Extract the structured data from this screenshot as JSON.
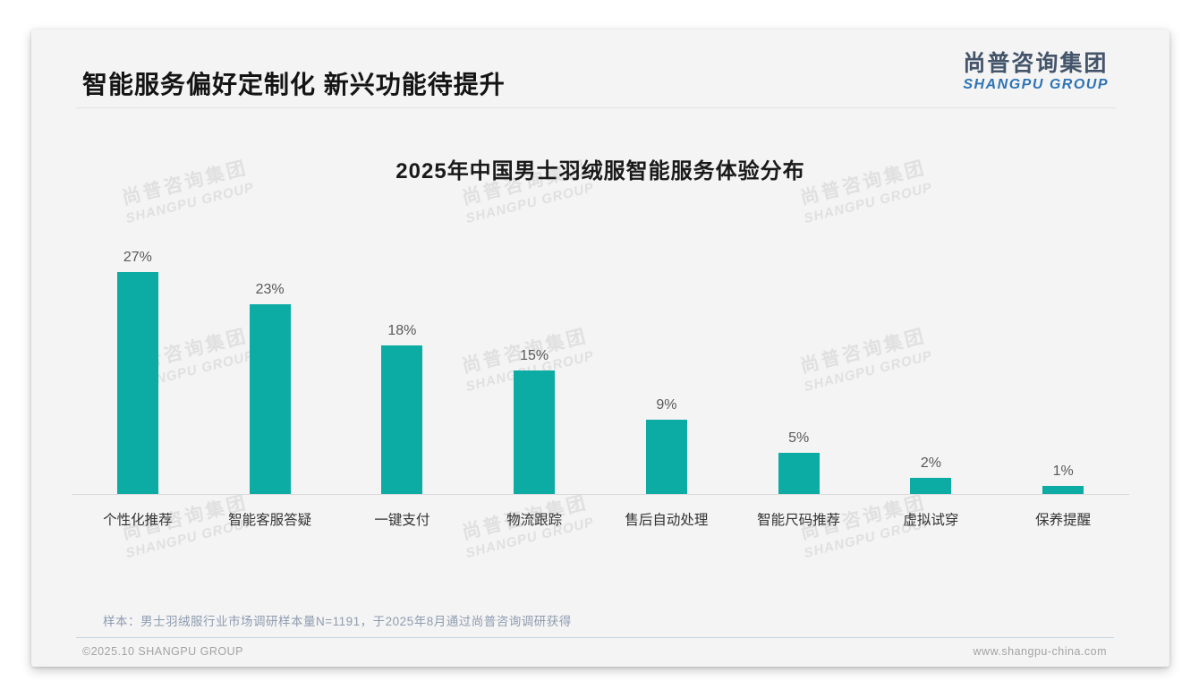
{
  "header": {
    "title": "智能服务偏好定制化 新兴功能待提升"
  },
  "logo": {
    "chinese": "尚普咨询集团",
    "english": "SHANGPU GROUP"
  },
  "watermark": {
    "line1": "尚普咨询集团",
    "line2": "SHANGPU GROUP"
  },
  "chart_data": {
    "type": "bar",
    "title": "2025年中国男士羽绒服智能服务体验分布",
    "categories": [
      "个性化推荐",
      "智能客服答疑",
      "一键支付",
      "物流跟踪",
      "售后自动处理",
      "智能尺码推荐",
      "虚拟试穿",
      "保养提醒"
    ],
    "values": [
      27,
      23,
      18,
      15,
      9,
      5,
      2,
      1
    ],
    "unit": "%",
    "bar_color": "#0caca5",
    "value_label_color": "#595959",
    "ylim": [
      0,
      30
    ],
    "grid": false,
    "legend": false,
    "xlabel": "",
    "ylabel": ""
  },
  "note": {
    "text": "样本：男士羽绒服行业市场调研样本量N=1191，于2025年8月通过尚普咨询调研获得"
  },
  "footer": {
    "left": "©2025.10 SHANGPU GROUP",
    "right": "www.shangpu-china.com"
  }
}
